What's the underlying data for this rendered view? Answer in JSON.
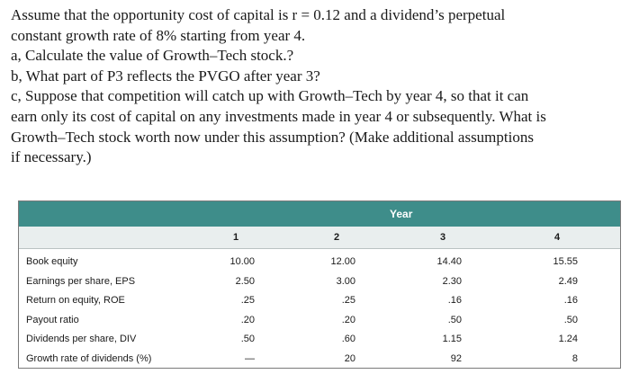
{
  "question": {
    "lines": [
      "Assume that the opportunity cost of capital is r = 0.12 and a dividend’s perpetual",
      "constant growth rate of 8% starting from year 4.",
      "a, Calculate the value of Growth–Tech stock.?",
      "b, What part of P3 reflects the PVGO after year 3?",
      "c, Suppose that competition will catch up with Growth–Tech by year 4, so that it can",
      "earn only its cost of capital on any investments made in year 4 or subsequently. What is",
      "Growth–Tech stock worth now under this assumption? (Make additional assumptions",
      "if necessary.)"
    ]
  },
  "table": {
    "group_header": "Year",
    "columns": [
      "1",
      "2",
      "3",
      "4"
    ],
    "rows": [
      {
        "label": "Book equity",
        "values": [
          "10.00",
          "12.00",
          "14.40",
          "15.55"
        ]
      },
      {
        "label": "Earnings per share, EPS",
        "values": [
          "2.50",
          "3.00",
          "2.30",
          "2.49"
        ]
      },
      {
        "label": "Return on equity, ROE",
        "values": [
          ".25",
          ".25",
          ".16",
          ".16"
        ]
      },
      {
        "label": "Payout ratio",
        "values": [
          ".20",
          ".20",
          ".50",
          ".50"
        ]
      },
      {
        "label": "Dividends per share, DIV",
        "values": [
          ".50",
          ".60",
          "1.15",
          "1.24"
        ]
      },
      {
        "label": "Growth rate of dividends (%)",
        "values": [
          "—",
          "20",
          "92",
          "8"
        ]
      }
    ]
  },
  "colors": {
    "header_bar": "#3e8d8a",
    "subheader_bg": "#e9eeee"
  }
}
